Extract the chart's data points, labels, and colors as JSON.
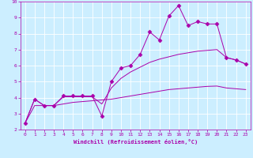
{
  "title": "",
  "xlabel": "Windchill (Refroidissement éolien,°C)",
  "ylabel": "",
  "background_color": "#cceeff",
  "grid_color": "#ffffff",
  "line_color": "#aa00aa",
  "xlim": [
    -0.5,
    23.5
  ],
  "ylim": [
    2,
    10
  ],
  "xticks": [
    0,
    1,
    2,
    3,
    4,
    5,
    6,
    7,
    8,
    9,
    10,
    11,
    12,
    13,
    14,
    15,
    16,
    17,
    18,
    19,
    20,
    21,
    22,
    23
  ],
  "yticks": [
    2,
    3,
    4,
    5,
    6,
    7,
    8,
    9,
    10
  ],
  "series": [
    {
      "x": [
        0,
        1,
        2,
        3,
        4,
        5,
        6,
        7,
        8,
        9,
        10,
        11,
        12,
        13,
        14,
        15,
        16,
        17,
        18,
        19,
        20,
        21,
        22,
        23
      ],
      "y": [
        2.4,
        3.9,
        3.5,
        3.5,
        4.1,
        4.1,
        4.1,
        4.1,
        2.85,
        5.0,
        5.85,
        6.0,
        6.7,
        8.1,
        7.6,
        9.1,
        9.75,
        8.5,
        8.75,
        8.6,
        8.6,
        6.5,
        6.35,
        6.1
      ],
      "marker": "D",
      "markersize": 2.5
    },
    {
      "x": [
        0,
        1,
        2,
        3,
        4,
        5,
        6,
        7,
        8,
        9,
        10,
        11,
        12,
        13,
        14,
        15,
        16,
        17,
        18,
        19,
        20,
        21,
        22,
        23
      ],
      "y": [
        2.4,
        3.9,
        3.5,
        3.5,
        4.05,
        4.05,
        4.05,
        4.05,
        3.6,
        4.6,
        5.2,
        5.6,
        5.9,
        6.2,
        6.4,
        6.55,
        6.7,
        6.8,
        6.9,
        6.95,
        7.0,
        6.5,
        6.35,
        6.1
      ],
      "marker": null,
      "markersize": 0
    },
    {
      "x": [
        0,
        1,
        2,
        3,
        4,
        5,
        6,
        7,
        8,
        9,
        10,
        11,
        12,
        13,
        14,
        15,
        16,
        17,
        18,
        19,
        20,
        21,
        22,
        23
      ],
      "y": [
        2.4,
        3.5,
        3.5,
        3.5,
        3.6,
        3.7,
        3.75,
        3.8,
        3.85,
        3.9,
        4.0,
        4.1,
        4.2,
        4.3,
        4.4,
        4.5,
        4.55,
        4.6,
        4.65,
        4.7,
        4.72,
        4.6,
        4.55,
        4.5
      ],
      "marker": null,
      "markersize": 0
    }
  ]
}
